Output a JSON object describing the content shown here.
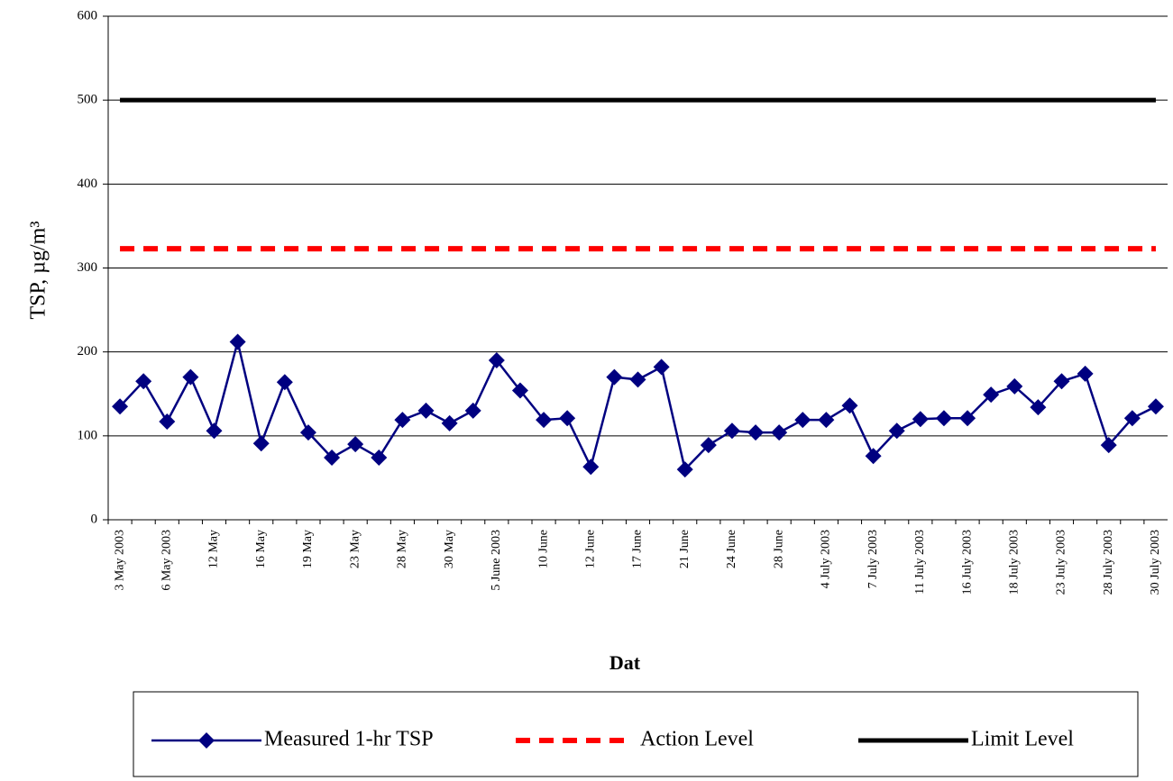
{
  "chart_data": {
    "type": "line",
    "xlabel": "Dat",
    "ylabel": "TSP, µg/m³",
    "categories": [
      "3 May 2003",
      null,
      "6 May 2003",
      null,
      "12 May",
      null,
      "16 May",
      null,
      "19 May",
      null,
      "23 May",
      null,
      "28 May",
      null,
      "30 May",
      null,
      "5 June 2003",
      null,
      "10 June",
      null,
      "12 June",
      null,
      "17 June",
      null,
      "21 June",
      null,
      "24 June",
      null,
      "28 June",
      null,
      "4 July 2003",
      null,
      "7 July 2003",
      null,
      "11 July 2003",
      null,
      "16 July 2003",
      null,
      "18 July 2003",
      null,
      "23 July 2003",
      null,
      "28 July 2003",
      null,
      "30 July 2003"
    ],
    "series": [
      {
        "name": "Measured 1-hr TSP",
        "color": "#000080",
        "style": "marker",
        "values": [
          135,
          165,
          117,
          170,
          106,
          212,
          91,
          164,
          104,
          74,
          90,
          74,
          119,
          130,
          115,
          130,
          190,
          154,
          119,
          121,
          63,
          170,
          167,
          182,
          60,
          89,
          106,
          104,
          104,
          119,
          119,
          136,
          76,
          106,
          120,
          121,
          121,
          149,
          159,
          134,
          165,
          174,
          89,
          121,
          135
        ]
      },
      {
        "name": "Action Level",
        "color": "#ff0000",
        "style": "dashed",
        "values": [
          323,
          323,
          323,
          323,
          323,
          323,
          323,
          323,
          323,
          323,
          323,
          323,
          323,
          323,
          323,
          323,
          323,
          323,
          323,
          323,
          323,
          323,
          323,
          323,
          323,
          323,
          323,
          323,
          323,
          323,
          323,
          323,
          323,
          323,
          323,
          323,
          323,
          323,
          323,
          323,
          323,
          323,
          323,
          323,
          323
        ]
      },
      {
        "name": "Limit Level",
        "color": "#000000",
        "style": "thick",
        "values": [
          500,
          500,
          500,
          500,
          500,
          500,
          500,
          500,
          500,
          500,
          500,
          500,
          500,
          500,
          500,
          500,
          500,
          500,
          500,
          500,
          500,
          500,
          500,
          500,
          500,
          500,
          500,
          500,
          500,
          500,
          500,
          500,
          500,
          500,
          500,
          500,
          500,
          500,
          500,
          500,
          500,
          500,
          500,
          500,
          500
        ]
      }
    ],
    "ylim": [
      0,
      600
    ],
    "yticks": [
      0,
      100,
      200,
      300,
      400,
      500,
      600
    ],
    "grid": true,
    "legend": "bottom"
  }
}
